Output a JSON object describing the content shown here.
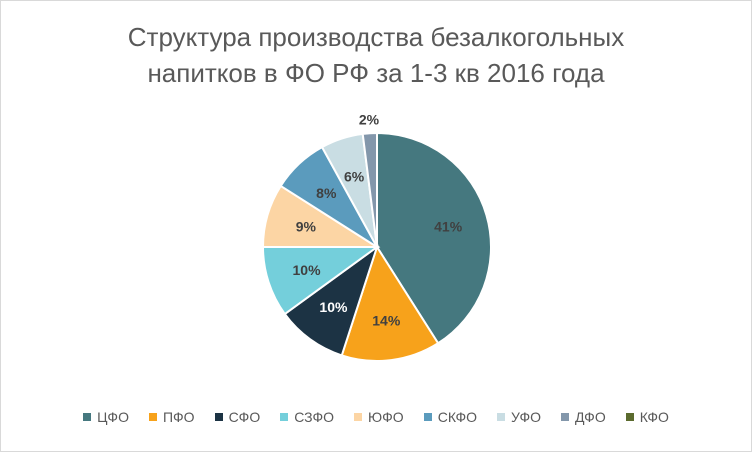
{
  "chart_data": {
    "type": "pie",
    "title_line1": "Структура производства безалкогольных",
    "title_line2": "напитков в ФО РФ за 1-3 кв 2016 года",
    "categories": [
      "ЦФО",
      "ПФО",
      "СФО",
      "СЗФО",
      "ЮФО",
      "СКФО",
      "УФО",
      "ДФО",
      "КФО"
    ],
    "values": [
      41,
      14,
      10,
      10,
      9,
      8,
      6,
      2,
      0
    ],
    "labels": [
      "41%",
      "14%",
      "10%",
      "10%",
      "9%",
      "8%",
      "6%",
      "2%",
      ""
    ],
    "colors": [
      "#45787f",
      "#f7a21b",
      "#1c3344",
      "#74cfdb",
      "#fcd5a4",
      "#5b9bbd",
      "#c9dde3",
      "#8397ab",
      "#5b6b2e"
    ],
    "label_colors": [
      "#404040",
      "#404040",
      "#ffffff",
      "#404040",
      "#404040",
      "#404040",
      "#404040",
      "#404040",
      "#404040"
    ],
    "legend_position": "bottom"
  }
}
